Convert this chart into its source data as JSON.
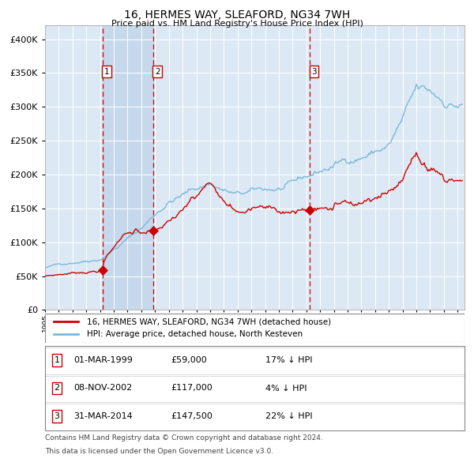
{
  "title": "16, HERMES WAY, SLEAFORD, NG34 7WH",
  "subtitle": "Price paid vs. HM Land Registry's House Price Index (HPI)",
  "property_label": "16, HERMES WAY, SLEAFORD, NG34 7WH (detached house)",
  "hpi_label": "HPI: Average price, detached house, North Kesteven",
  "transactions": [
    {
      "num": 1,
      "date": "01-MAR-1999",
      "price": "£59,000",
      "pct": "17%",
      "dir": "↓",
      "x_year": 1999.17,
      "y_val": 59000
    },
    {
      "num": 2,
      "date": "08-NOV-2002",
      "price": "£117,000",
      "pct": "4%",
      "dir": "↓",
      "x_year": 2002.85,
      "y_val": 117000
    },
    {
      "num": 3,
      "date": "31-MAR-2014",
      "price": "£147,500",
      "pct": "22%",
      "dir": "↓",
      "x_year": 2014.25,
      "y_val": 147500
    }
  ],
  "ylim": [
    0,
    420000
  ],
  "xlim_start": 1995.0,
  "xlim_end": 2025.5,
  "background_color": "#ffffff",
  "plot_bg_color": "#dce9f5",
  "grid_color": "#ffffff",
  "hpi_line_color": "#7ab8d9",
  "property_line_color": "#cc0000",
  "dashed_line_color": "#cc0000",
  "highlight_bg_color": "#c5d8ec",
  "footnote_line1": "Contains HM Land Registry data © Crown copyright and database right 2024.",
  "footnote_line2": "This data is licensed under the Open Government Licence v3.0."
}
